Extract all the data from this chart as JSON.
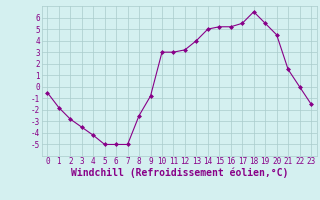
{
  "x": [
    0,
    1,
    2,
    3,
    4,
    5,
    6,
    7,
    8,
    9,
    10,
    11,
    12,
    13,
    14,
    15,
    16,
    17,
    18,
    19,
    20,
    21,
    22,
    23
  ],
  "y": [
    -0.5,
    -1.8,
    -2.8,
    -3.5,
    -4.2,
    -5.0,
    -5.0,
    -5.0,
    -2.5,
    -0.8,
    3.0,
    3.0,
    3.2,
    4.0,
    5.0,
    5.2,
    5.2,
    5.5,
    6.5,
    5.5,
    4.5,
    1.5,
    0.0,
    -1.5
  ],
  "line_color": "#880088",
  "marker": "D",
  "marker_size": 2.0,
  "bg_color": "#d4f0f0",
  "grid_color": "#aacccc",
  "xlabel": "Windchill (Refroidissement éolien,°C)",
  "xlabel_color": "#880088",
  "ylim": [
    -6,
    7
  ],
  "xlim": [
    -0.5,
    23.5
  ],
  "yticks": [
    -5,
    -4,
    -3,
    -2,
    -1,
    0,
    1,
    2,
    3,
    4,
    5,
    6
  ],
  "xticks": [
    0,
    1,
    2,
    3,
    4,
    5,
    6,
    7,
    8,
    9,
    10,
    11,
    12,
    13,
    14,
    15,
    16,
    17,
    18,
    19,
    20,
    21,
    22,
    23
  ],
  "tick_fontsize": 5.5,
  "xlabel_fontsize": 7.0,
  "xlabel_fontweight": "bold"
}
